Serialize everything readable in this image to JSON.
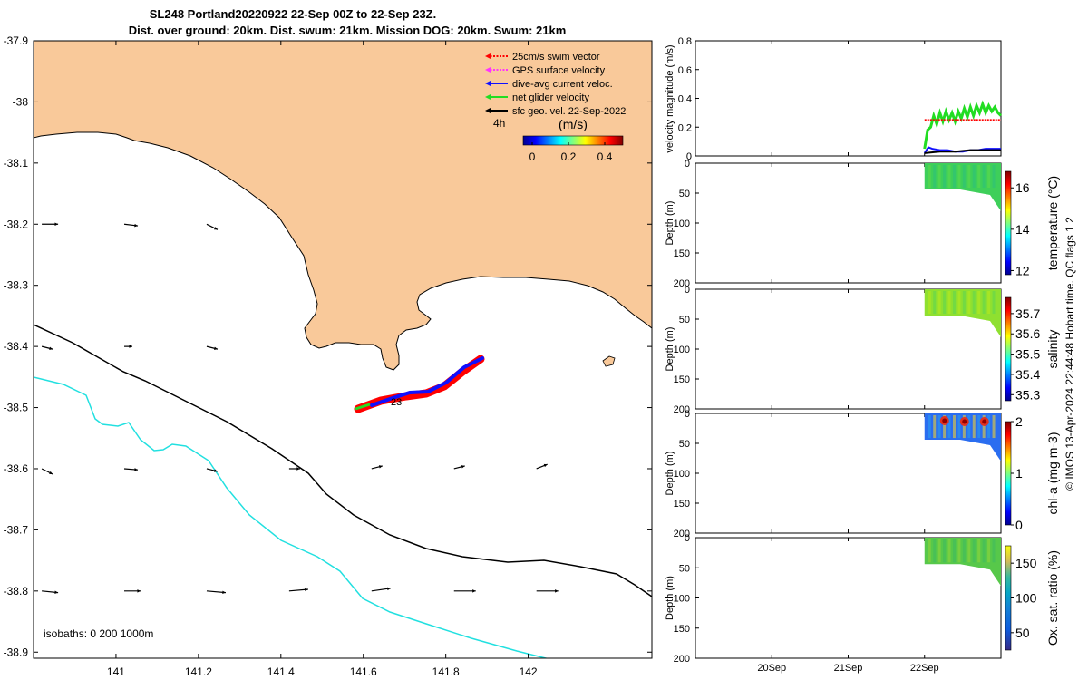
{
  "title": {
    "line1": "SL248 Portland20220922 22-Sep 00Z to 22-Sep 23Z.",
    "line2": "Dist. over ground: 20km. Dist. swum: 21km. Mission DOG: 20km. Swum: 21km"
  },
  "credit": "© IMOS 13-Apr-2024 22:44:48 Hobart time. QC flags 1  2",
  "colors": {
    "land": "#f9c99a",
    "isobath_200": "#000000",
    "isobath_1000": "#22e0e0",
    "swim_vector": "#ff0000",
    "gps_velocity": "#ff33ff",
    "dive_avg_current": "#1010ff",
    "net_glider_velocity": "#22dd22",
    "sfc_geo_velocity": "#000000"
  },
  "chart_data": [
    {
      "type": "map",
      "xlim": [
        140.8,
        142.3
      ],
      "ylim": [
        -38.91,
        -37.9
      ],
      "x_ticks": [
        "141",
        "141.2",
        "141.4",
        "141.6",
        "141.8",
        "142"
      ],
      "y_ticks": [
        "-37.9",
        "-38",
        "-38.1",
        "-38.2",
        "-38.3",
        "-38.4",
        "-38.5",
        "-38.6",
        "-38.7",
        "-38.8",
        "-38.9"
      ],
      "legend": {
        "position": "top-right",
        "items": [
          {
            "label": "25cm/s swim vector",
            "color": "#ff0000",
            "style": "dotted"
          },
          {
            "label": "GPS surface velocity",
            "color": "#ff33ff",
            "style": "dotted"
          },
          {
            "label": "dive-avg current veloc.",
            "color": "#1010ff",
            "style": "solid"
          },
          {
            "label": "net glider velocity",
            "color": "#22dd22",
            "style": "solid"
          },
          {
            "label": "sfc geo. vel. 22-Sep-2022",
            "color": "#000000",
            "style": "solid"
          }
        ],
        "interval_label": "4h"
      },
      "colorbar": {
        "title": "(m/s)",
        "range": [
          -0.05,
          0.5
        ],
        "ticks": [
          "0",
          "0.2",
          "0.4"
        ],
        "colormap": "jet"
      },
      "isobath_note": "isobaths: 0   200  1000m",
      "glider_track": {
        "start_label": "23",
        "points": [
          [
            141.48,
            -38.5
          ],
          [
            141.55,
            -38.48
          ],
          [
            141.62,
            -38.47
          ],
          [
            141.66,
            -38.45
          ],
          [
            141.7,
            -38.43
          ],
          [
            141.74,
            -38.415
          ]
        ]
      },
      "surface_geostrophic_vectors": [
        {
          "lon": 140.82,
          "lat": -38.2,
          "u": 0.03,
          "v": 0.0
        },
        {
          "lon": 141.02,
          "lat": -38.2,
          "u": 0.025,
          "v": -0.003
        },
        {
          "lon": 141.22,
          "lat": -38.2,
          "u": 0.02,
          "v": -0.01
        },
        {
          "lon": 140.82,
          "lat": -38.4,
          "u": 0.02,
          "v": -0.005
        },
        {
          "lon": 141.02,
          "lat": -38.4,
          "u": 0.015,
          "v": 0.0
        },
        {
          "lon": 141.22,
          "lat": -38.4,
          "u": 0.02,
          "v": -0.005
        },
        {
          "lon": 140.82,
          "lat": -38.6,
          "u": 0.02,
          "v": -0.01
        },
        {
          "lon": 141.02,
          "lat": -38.6,
          "u": 0.025,
          "v": -0.002
        },
        {
          "lon": 141.22,
          "lat": -38.6,
          "u": 0.02,
          "v": -0.005
        },
        {
          "lon": 141.42,
          "lat": -38.6,
          "u": 0.02,
          "v": 0.0
        },
        {
          "lon": 141.62,
          "lat": -38.6,
          "u": 0.02,
          "v": 0.005
        },
        {
          "lon": 141.82,
          "lat": -38.6,
          "u": 0.02,
          "v": 0.005
        },
        {
          "lon": 142.02,
          "lat": -38.6,
          "u": 0.02,
          "v": 0.008
        },
        {
          "lon": 140.82,
          "lat": -38.8,
          "u": 0.03,
          "v": -0.003
        },
        {
          "lon": 141.02,
          "lat": -38.8,
          "u": 0.03,
          "v": 0.0
        },
        {
          "lon": 141.22,
          "lat": -38.8,
          "u": 0.035,
          "v": -0.003
        },
        {
          "lon": 141.42,
          "lat": -38.8,
          "u": 0.035,
          "v": 0.003
        },
        {
          "lon": 141.62,
          "lat": -38.8,
          "u": 0.035,
          "v": 0.005
        },
        {
          "lon": 141.82,
          "lat": -38.8,
          "u": 0.04,
          "v": 0.0
        },
        {
          "lon": 142.02,
          "lat": -38.8,
          "u": 0.04,
          "v": 0.0
        }
      ]
    },
    {
      "type": "line",
      "ylabel": "velocity magnitude (m/s)",
      "ylim": [
        0,
        0.8
      ],
      "y_ticks": [
        "0",
        "0.2",
        "0.4",
        "0.6",
        "0.8"
      ],
      "x_ticks": [
        "20Sep",
        "21Sep",
        "22Sep"
      ],
      "x_tick_days": [
        20,
        21,
        22
      ],
      "xlim_days": [
        19.0,
        23.0
      ],
      "series": [
        {
          "color": "#22dd22",
          "x_days": [
            22.0,
            22.04,
            22.08,
            22.12,
            22.16,
            22.2,
            22.24,
            22.28,
            22.32,
            22.36,
            22.4,
            22.44,
            22.48,
            22.52,
            22.56,
            22.6,
            22.64,
            22.68,
            22.72,
            22.76,
            22.8,
            22.84,
            22.88,
            22.92,
            22.96,
            23.0
          ],
          "values": [
            0.05,
            0.18,
            0.2,
            0.28,
            0.22,
            0.3,
            0.24,
            0.31,
            0.25,
            0.3,
            0.24,
            0.31,
            0.26,
            0.33,
            0.27,
            0.34,
            0.28,
            0.35,
            0.3,
            0.36,
            0.3,
            0.35,
            0.31,
            0.34,
            0.3,
            0.28
          ]
        },
        {
          "color": "#ff0000",
          "x_days": [
            22.0,
            23.0
          ],
          "values": [
            0.25,
            0.25
          ]
        },
        {
          "color": "#1010ff",
          "x_days": [
            22.0,
            22.05,
            22.1,
            22.2,
            22.3,
            22.4,
            22.5,
            22.6,
            22.7,
            22.8,
            22.9,
            23.0
          ],
          "values": [
            0.02,
            0.06,
            0.05,
            0.04,
            0.04,
            0.03,
            0.03,
            0.04,
            0.04,
            0.05,
            0.05,
            0.05
          ]
        },
        {
          "color": "#000000",
          "x_days": [
            22.0,
            22.2,
            22.4,
            22.6,
            22.8,
            23.0
          ],
          "values": [
            0.02,
            0.03,
            0.03,
            0.04,
            0.04,
            0.04
          ]
        }
      ]
    },
    {
      "type": "heatmap",
      "ylabel": "Depth (m)",
      "y_ticks": [
        "0",
        "50",
        "100",
        "150",
        "200"
      ],
      "ylim": [
        200,
        0
      ],
      "colorbar_label": "temperature (°C)",
      "colorbar_range": [
        11.8,
        16.8
      ],
      "colorbar_ticks": [
        "12",
        "14",
        "16"
      ],
      "data_x_days": [
        22.0,
        23.0
      ],
      "depth_range": [
        0,
        80
      ],
      "dominant_value": 14.5
    },
    {
      "type": "heatmap",
      "ylabel": "Depth (m)",
      "y_ticks": [
        "0",
        "50",
        "100",
        "150",
        "200"
      ],
      "ylim": [
        200,
        0
      ],
      "colorbar_label": "salinity",
      "colorbar_range": [
        35.27,
        35.78
      ],
      "colorbar_ticks": [
        "35.3",
        "35.4",
        "35.5",
        "35.6",
        "35.7"
      ],
      "data_x_days": [
        22.0,
        23.0
      ],
      "depth_range": [
        0,
        80
      ],
      "dominant_value": 35.55
    },
    {
      "type": "heatmap",
      "ylabel": "Depth (m)",
      "y_ticks": [
        "0",
        "50",
        "100",
        "150",
        "200"
      ],
      "ylim": [
        200,
        0
      ],
      "colorbar_label": "chl-a (mg m-3)",
      "colorbar_range": [
        0,
        2
      ],
      "colorbar_ticks": [
        "0",
        "1",
        "2"
      ],
      "data_x_days": [
        22.0,
        23.0
      ],
      "depth_range": [
        0,
        80
      ],
      "dominant_value": 0.6
    },
    {
      "type": "heatmap",
      "ylabel": "Depth (m)",
      "y_ticks": [
        "0",
        "50",
        "100",
        "150",
        "200"
      ],
      "ylim": [
        200,
        0
      ],
      "x_ticks": [
        "20Sep",
        "21Sep",
        "22Sep"
      ],
      "colorbar_label": "Ox. sat. ratio (%)",
      "colorbar_range": [
        25,
        175
      ],
      "colorbar_ticks": [
        "50",
        "100",
        "150"
      ],
      "data_x_days": [
        22.0,
        23.0
      ],
      "depth_range": [
        0,
        80
      ],
      "dominant_value": 120
    }
  ]
}
